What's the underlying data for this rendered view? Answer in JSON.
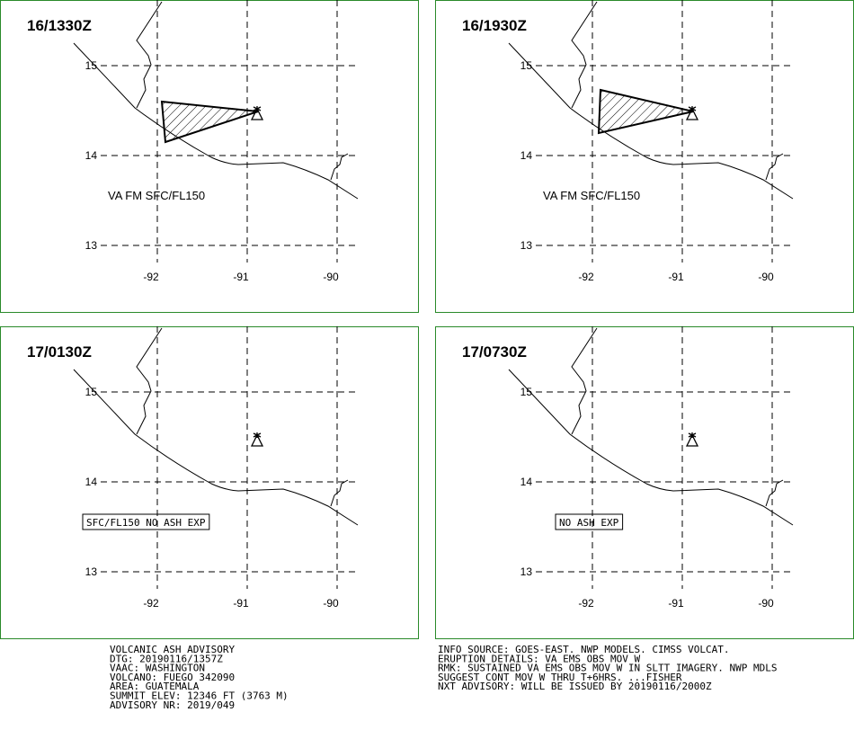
{
  "panels": [
    {
      "time": "16/1330Z",
      "lat_labels": [
        "15",
        "14",
        "13"
      ],
      "lon_labels": [
        "-92",
        "-91",
        "-90"
      ],
      "annotation": "VA FM SFC/FL150",
      "ash_area": true
    },
    {
      "time": "16/1930Z",
      "lat_labels": [
        "15",
        "14",
        "13"
      ],
      "lon_labels": [
        "-92",
        "-91",
        "-90"
      ],
      "annotation": "VA FM SFC/FL150",
      "ash_area": true
    },
    {
      "time": "17/0130Z",
      "lat_labels": [
        "15",
        "14",
        "13"
      ],
      "lon_labels": [
        "-92",
        "-91",
        "-90"
      ],
      "annotation": "SFC/FL150 NO ASH EXP",
      "ash_area": false
    },
    {
      "time": "17/0730Z",
      "lat_labels": [
        "15",
        "14",
        "13"
      ],
      "lon_labels": [
        "-92",
        "-91",
        "-90"
      ],
      "annotation": "NO ASH EXP",
      "ash_area": false
    }
  ],
  "advisory_left": [
    "VOLCANIC ASH ADVISORY",
    "DTG: 20190116/1357Z",
    "VAAC: WASHINGTON",
    "VOLCANO: FUEGO 342090",
    "AREA: GUATEMALA",
    "SUMMIT ELEV: 12346 FT (3763 M)",
    "ADVISORY NR: 2019/049"
  ],
  "advisory_right": [
    "INFO SOURCE: GOES-EAST. NWP MODELS. CIMSS VOLCAT.",
    "ERUPTION DETAILS: VA EMS OBS MOV W",
    "RMK: SUSTAINED VA EMS OBS MOV W IN SLTT IMAGERY. NWP MDLS",
    "SUGGEST CONT MOV W THRU T+6HRS. ...FISHER",
    "NXT ADVISORY: WILL BE ISSUED BY 20190116/2000Z"
  ]
}
